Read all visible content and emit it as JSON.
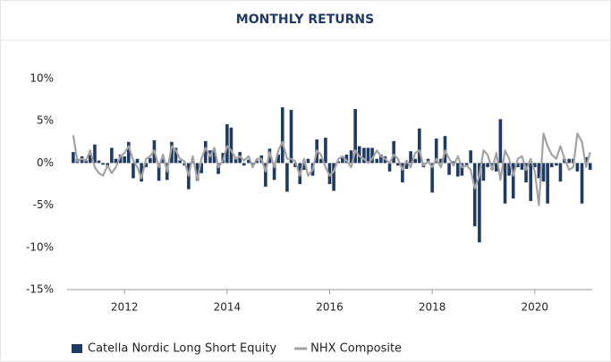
{
  "chart_data": {
    "type": "bar-line",
    "title": "MONTHLY RETURNS",
    "x": [
      2011.0,
      2011.08,
      2011.17,
      2011.25,
      2011.33,
      2011.42,
      2011.5,
      2011.58,
      2011.67,
      2011.75,
      2011.83,
      2011.92,
      2012.0,
      2012.08,
      2012.17,
      2012.25,
      2012.33,
      2012.42,
      2012.5,
      2012.58,
      2012.67,
      2012.75,
      2012.83,
      2012.92,
      2013.0,
      2013.08,
      2013.17,
      2013.25,
      2013.33,
      2013.42,
      2013.5,
      2013.58,
      2013.67,
      2013.75,
      2013.83,
      2013.92,
      2014.0,
      2014.08,
      2014.17,
      2014.25,
      2014.33,
      2014.42,
      2014.5,
      2014.58,
      2014.67,
      2014.75,
      2014.83,
      2014.92,
      2015.0,
      2015.08,
      2015.17,
      2015.25,
      2015.33,
      2015.42,
      2015.5,
      2015.58,
      2015.67,
      2015.75,
      2015.83,
      2015.92,
      2016.0,
      2016.08,
      2016.17,
      2016.25,
      2016.33,
      2016.42,
      2016.5,
      2016.58,
      2016.67,
      2016.75,
      2016.83,
      2016.92,
      2017.0,
      2017.08,
      2017.17,
      2017.25,
      2017.33,
      2017.42,
      2017.5,
      2017.58,
      2017.67,
      2017.75,
      2017.83,
      2017.92,
      2018.0,
      2018.08,
      2018.17,
      2018.25,
      2018.33,
      2018.42,
      2018.5,
      2018.58,
      2018.67,
      2018.75,
      2018.83,
      2018.92,
      2019.0,
      2019.08,
      2019.17,
      2019.25,
      2019.33,
      2019.42,
      2019.5,
      2019.58,
      2019.67,
      2019.75,
      2019.83,
      2019.92,
      2020.0,
      2020.08,
      2020.17,
      2020.25,
      2020.33,
      2020.42,
      2020.5,
      2020.58,
      2020.67,
      2020.75,
      2020.83,
      2020.92,
      2021.0,
      2021.08
    ],
    "series": [
      {
        "name": "Catella Nordic Long Short Equity",
        "kind": "bar",
        "color": "#1f3a63",
        "values": [
          1.3,
          0.5,
          0.8,
          0.3,
          1.0,
          2.2,
          0.3,
          -0.2,
          -0.4,
          1.8,
          0.5,
          1.0,
          0.8,
          2.5,
          -1.8,
          0.5,
          -2.2,
          -0.5,
          0.6,
          2.7,
          -2.1,
          0.8,
          -2.0,
          2.5,
          1.8,
          0.3,
          -0.3,
          -3.1,
          0.5,
          -2.1,
          -1.2,
          2.6,
          1.5,
          1.6,
          -1.3,
          1.2,
          4.6,
          4.2,
          0.7,
          1.3,
          -0.3,
          0.4,
          -0.2,
          0.3,
          0.9,
          -2.8,
          1.7,
          -2.0,
          1.0,
          6.6,
          -3.4,
          6.3,
          -0.5,
          -2.5,
          -0.8,
          0.5,
          -1.5,
          2.8,
          0.5,
          3.0,
          -2.5,
          -3.3,
          0.2,
          0.8,
          1.0,
          1.5,
          6.4,
          2.0,
          1.8,
          1.8,
          1.8,
          0.5,
          1.0,
          0.8,
          -1.0,
          2.6,
          -0.3,
          -2.3,
          -0.7,
          1.4,
          0.5,
          4.1,
          -0.5,
          0.5,
          -3.5,
          2.9,
          0.5,
          3.2,
          -1.4,
          0.2,
          -1.6,
          -1.5,
          -0.3,
          1.5,
          -7.5,
          -9.4,
          -2.1,
          -0.5,
          -0.8,
          -1.0,
          5.2,
          -4.8,
          -1.5,
          -4.2,
          -0.5,
          -0.8,
          -2.3,
          -4.5,
          -0.5,
          -1.8,
          -2.2,
          -4.8,
          -0.5,
          -0.3,
          -2.2,
          0.5,
          0.5,
          0.5,
          -1.0,
          -4.8,
          0.7,
          -0.8
        ]
      },
      {
        "name": "NHX Composite",
        "kind": "line",
        "color": "#a3a3a3",
        "values": [
          3.3,
          0.2,
          0.5,
          0.3,
          1.5,
          -0.5,
          -1.2,
          -1.5,
          -0.3,
          -1.2,
          -0.5,
          0.8,
          1.2,
          2.0,
          0.3,
          -0.5,
          -1.8,
          0.5,
          0.8,
          1.5,
          -0.5,
          1.0,
          -1.0,
          2.0,
          1.5,
          0.5,
          0.2,
          -1.5,
          0.8,
          -2.0,
          0.5,
          1.8,
          0.8,
          1.8,
          -0.5,
          0.3,
          2.0,
          1.5,
          0.5,
          0.8,
          0.3,
          0.8,
          -0.5,
          0.5,
          0.5,
          -1.0,
          1.3,
          -0.5,
          1.5,
          2.5,
          0.5,
          0.5,
          0.2,
          -1.5,
          0.5,
          -1.5,
          -0.8,
          1.5,
          1.0,
          -0.5,
          -1.5,
          -1.0,
          0.5,
          0.8,
          0.3,
          -0.5,
          1.5,
          0.8,
          0.5,
          0.0,
          0.5,
          1.5,
          0.8,
          0.5,
          0.0,
          1.0,
          0.5,
          -0.8,
          0.3,
          -0.5,
          1.2,
          1.5,
          -0.3,
          0.2,
          -0.5,
          0.5,
          -0.5,
          1.5,
          0.5,
          -0.3,
          0.8,
          -0.5,
          -0.3,
          -0.8,
          -3.0,
          -1.5,
          1.5,
          1.0,
          -0.8,
          1.2,
          -2.0,
          1.5,
          0.5,
          -1.5,
          0.5,
          0.8,
          -0.8,
          0.5,
          -1.0,
          -5.0,
          3.5,
          2.0,
          1.0,
          0.5,
          2.0,
          0.5,
          -0.8,
          -0.5,
          3.5,
          2.5,
          -0.5,
          1.3
        ]
      }
    ],
    "xlim": [
      2010.88,
      2021.12
    ],
    "xticks": [
      2012,
      2014,
      2016,
      2018,
      2020
    ],
    "ylim": [
      -15,
      10
    ],
    "yticks": [
      {
        "value": -15,
        "label": "-15%"
      },
      {
        "value": -10,
        "label": "-10%"
      },
      {
        "value": -5,
        "label": "-5%"
      },
      {
        "value": 0,
        "label": "0%"
      },
      {
        "value": 5,
        "label": "5%"
      },
      {
        "value": 10,
        "label": "10%"
      }
    ],
    "legend": "bottom"
  }
}
